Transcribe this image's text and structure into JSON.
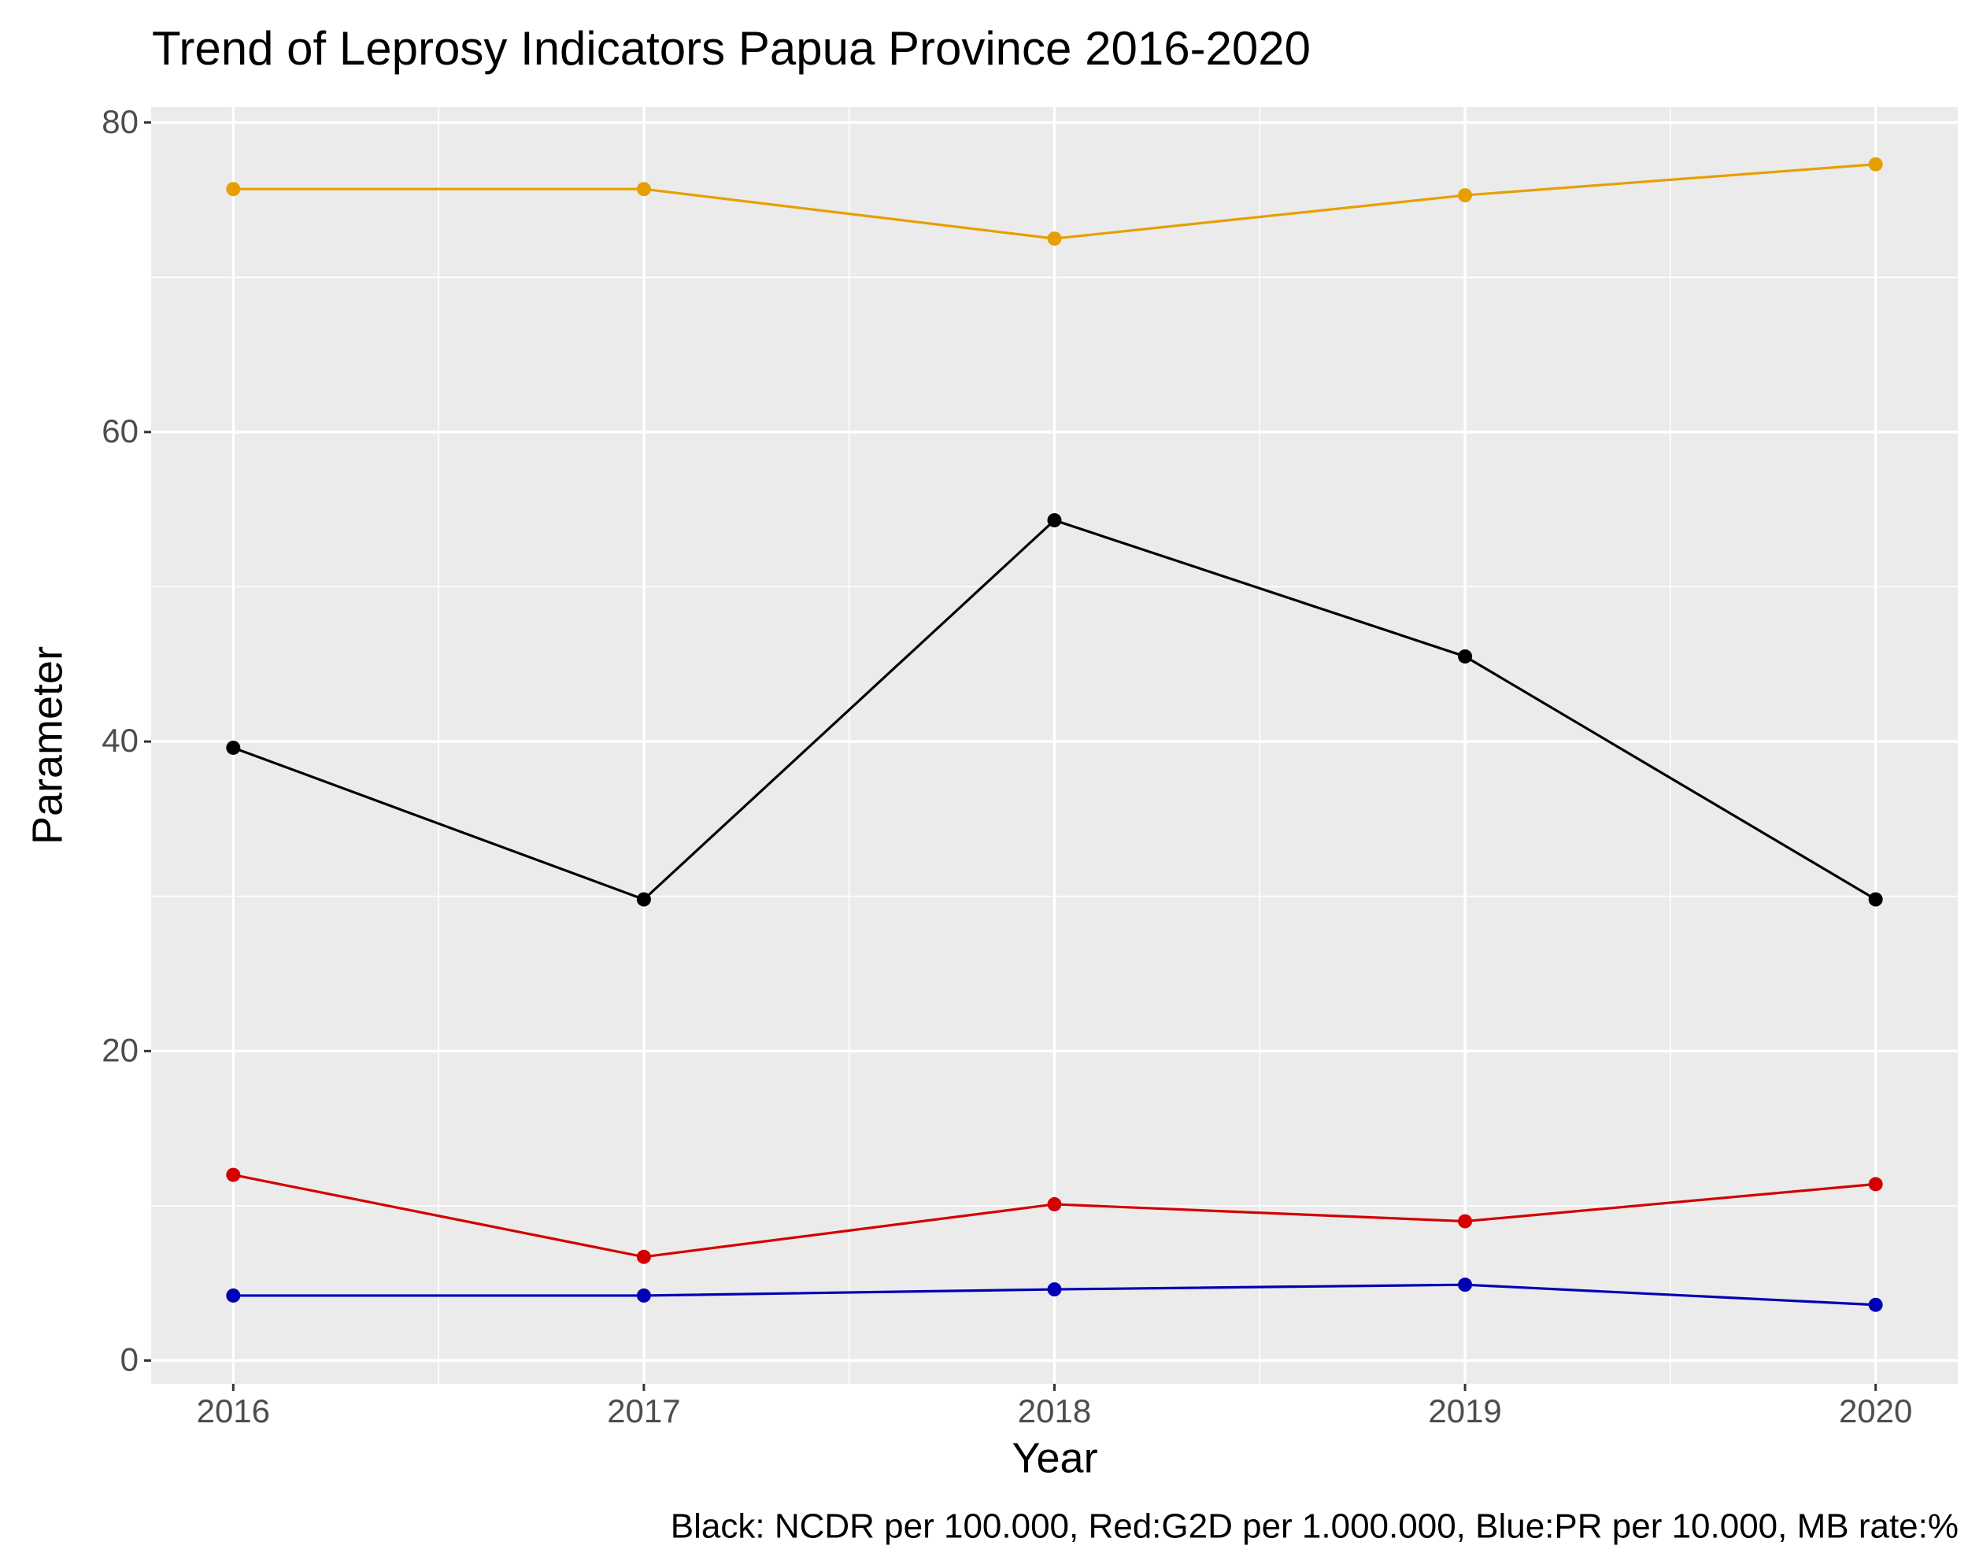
{
  "chart_data": {
    "type": "line",
    "title": "Trend of Leprosy Indicators Papua Province 2016-2020",
    "xlabel": "Year",
    "ylabel": "Parameter",
    "caption": "Black: NCDR per 100.000, Red:G2D per 1.000.000, Blue:PR per 10.000, MB rate:%",
    "x": [
      2016,
      2017,
      2018,
      2019,
      2020
    ],
    "series": [
      {
        "color": "#e69f00",
        "values": [
          75.7,
          75.7,
          72.5,
          75.3,
          77.3
        ]
      },
      {
        "color": "#000000",
        "values": [
          39.6,
          29.8,
          54.3,
          45.5,
          29.8
        ]
      },
      {
        "color": "#d40000",
        "values": [
          12.0,
          6.7,
          10.1,
          9.0,
          11.4
        ]
      },
      {
        "color": "#0000b4",
        "values": [
          4.2,
          4.2,
          4.6,
          4.9,
          3.6
        ]
      }
    ],
    "xlim": [
      2015.8,
      2020.2
    ],
    "xticks": [
      2016,
      2017,
      2018,
      2019,
      2020
    ],
    "xticks_minor": [
      2016.5,
      2017.5,
      2018.5,
      2019.5
    ],
    "ylim": [
      -1.5,
      81
    ],
    "yticks": [
      0,
      20,
      40,
      60,
      80
    ],
    "yticks_minor": [
      10,
      30,
      50,
      70
    ],
    "grid": true,
    "panel_color": "#ebebeb"
  }
}
